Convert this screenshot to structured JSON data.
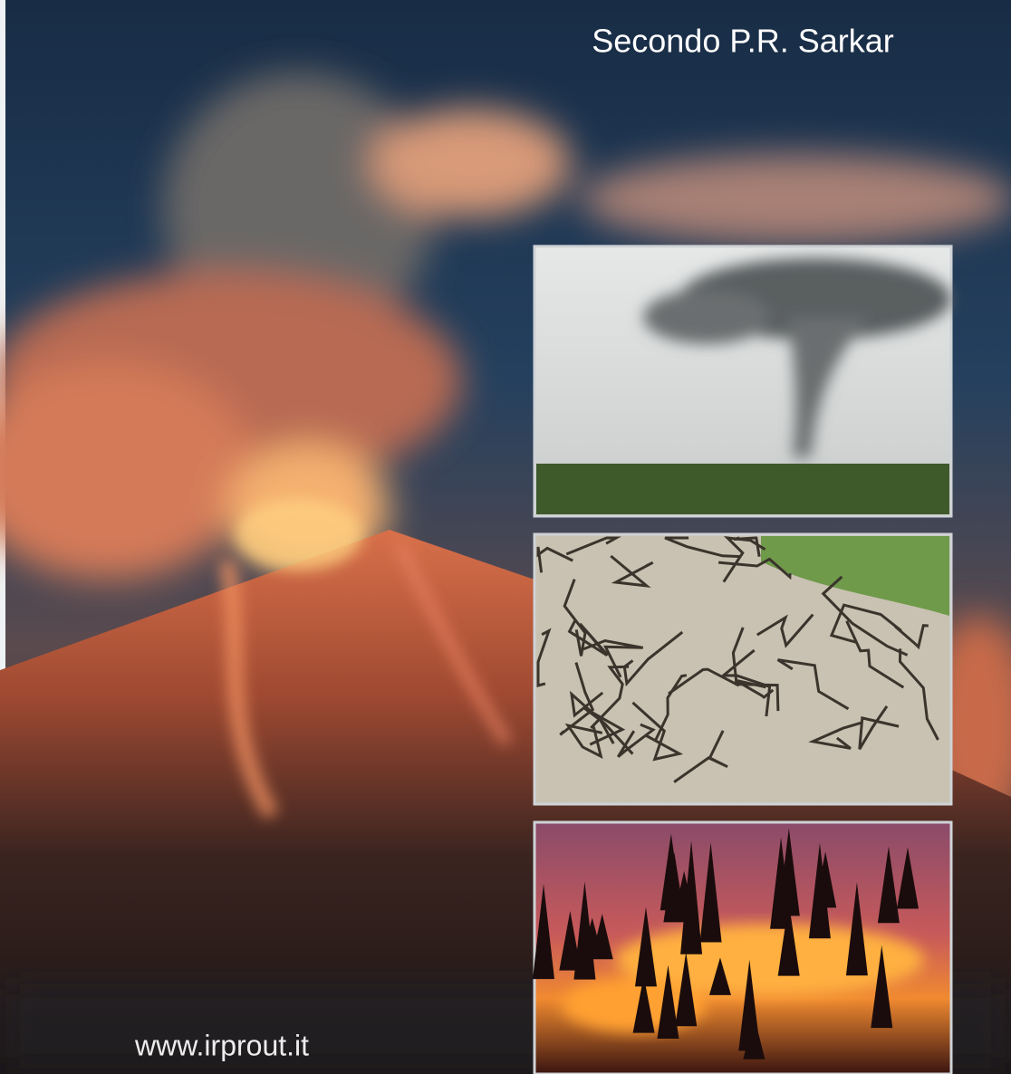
{
  "header": {
    "author": "Secondo P.R. Sarkar"
  },
  "footer": {
    "url": "www.irprout.it"
  }
}
